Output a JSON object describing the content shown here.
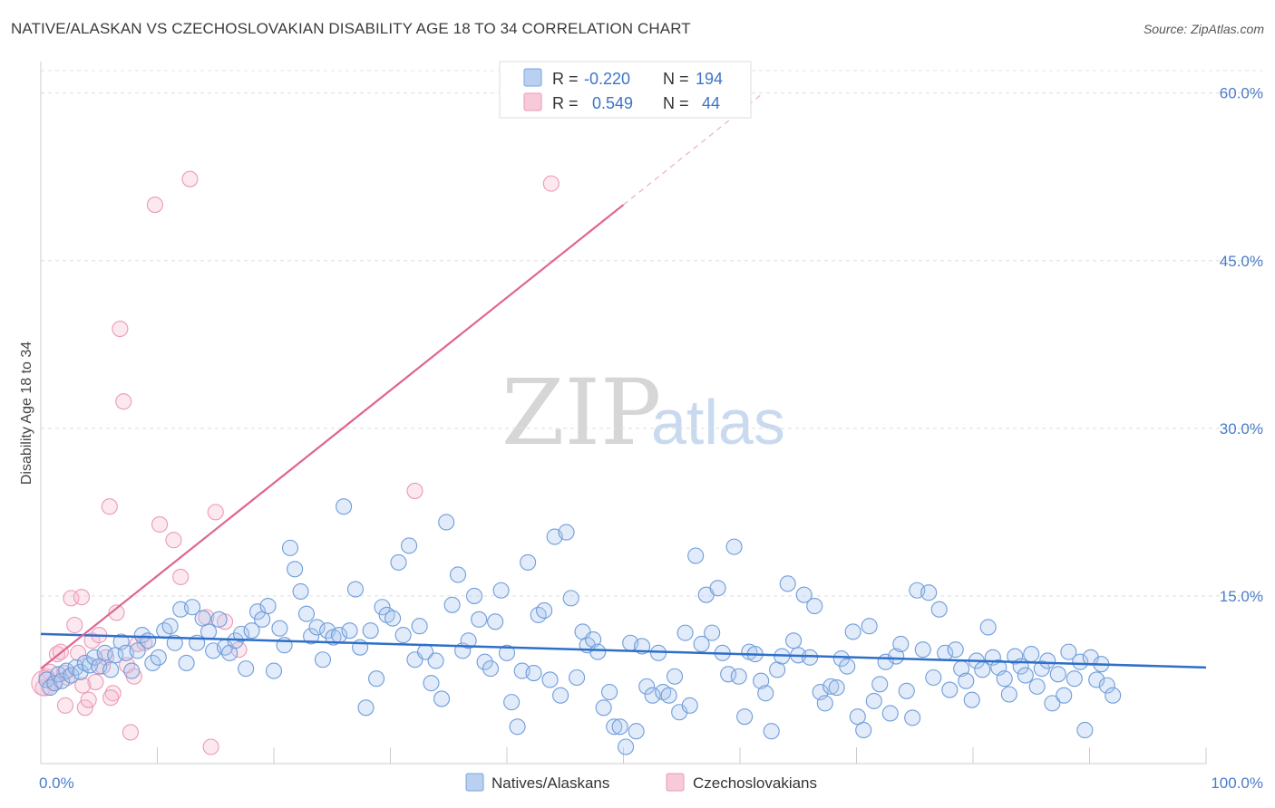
{
  "header": {
    "title": "NATIVE/ALASKAN VS CZECHOSLOVAKIAN DISABILITY AGE 18 TO 34 CORRELATION CHART",
    "source": "Source: ZipAtlas.com"
  },
  "watermark": {
    "zip": "ZIP",
    "atlas": "atlas"
  },
  "colors": {
    "blue": "#5b8fd6",
    "blue_fill": "#a9c6ee",
    "pink": "#e8709a",
    "pink_fill": "#f6bcd0",
    "axis_label": "#4a7cc9"
  },
  "legend": {
    "rows": [
      {
        "r_label": "R =",
        "r_value": "-0.220",
        "n_label": "N =",
        "n_value": "194"
      },
      {
        "r_label": "R =",
        "r_value": "0.549",
        "n_label": "N =",
        "n_value": "44"
      }
    ]
  },
  "chart_data": {
    "type": "scatter",
    "ylabel": "Disability Age 18 to 34",
    "x_tick_labels": [
      "0.0%",
      "100.0%"
    ],
    "y_tick_labels": [
      "15.0%",
      "30.0%",
      "45.0%",
      "60.0%"
    ],
    "y_ticks": [
      15,
      30,
      45,
      60
    ],
    "xlim": [
      0,
      100
    ],
    "ylim": [
      0,
      62
    ],
    "grid": "horizontal dashed",
    "legend_position": "top-center",
    "series": [
      {
        "name": "Natives/Alaskans",
        "color": "#5b8fd6",
        "trend": {
          "x0": 0,
          "y0": 11.6,
          "x1": 100,
          "y1": 8.6
        },
        "points": [
          [
            0.5,
            7.5
          ],
          [
            0.8,
            6.8
          ],
          [
            1.2,
            7.2
          ],
          [
            1.5,
            8.0
          ],
          [
            1.8,
            7.4
          ],
          [
            2.2,
            8.3
          ],
          [
            2.6,
            7.9
          ],
          [
            3.0,
            8.6
          ],
          [
            3.4,
            8.2
          ],
          [
            3.8,
            9.0
          ],
          [
            4.2,
            8.8
          ],
          [
            4.6,
            9.5
          ],
          [
            5.0,
            8.7
          ],
          [
            5.5,
            9.9
          ],
          [
            6.0,
            8.4
          ],
          [
            6.4,
            9.7
          ],
          [
            6.9,
            10.9
          ],
          [
            7.3,
            9.9
          ],
          [
            7.8,
            8.3
          ],
          [
            8.3,
            10.1
          ],
          [
            8.7,
            11.5
          ],
          [
            9.2,
            11.0
          ],
          [
            9.6,
            9.0
          ],
          [
            10.1,
            9.5
          ],
          [
            10.6,
            11.9
          ],
          [
            11.1,
            12.3
          ],
          [
            11.5,
            10.8
          ],
          [
            12.0,
            13.8
          ],
          [
            12.5,
            9.0
          ],
          [
            13.0,
            14.0
          ],
          [
            13.4,
            10.8
          ],
          [
            13.9,
            13.0
          ],
          [
            14.4,
            11.8
          ],
          [
            14.8,
            10.1
          ],
          [
            15.3,
            12.9
          ],
          [
            15.8,
            10.4
          ],
          [
            16.2,
            9.9
          ],
          [
            16.7,
            11.0
          ],
          [
            17.2,
            11.6
          ],
          [
            17.6,
            8.5
          ],
          [
            18.1,
            11.9
          ],
          [
            18.6,
            13.6
          ],
          [
            19.0,
            12.9
          ],
          [
            19.5,
            14.1
          ],
          [
            20.0,
            8.3
          ],
          [
            20.5,
            12.1
          ],
          [
            20.9,
            10.6
          ],
          [
            21.4,
            19.3
          ],
          [
            21.8,
            17.4
          ],
          [
            22.3,
            15.4
          ],
          [
            22.8,
            13.4
          ],
          [
            23.2,
            11.4
          ],
          [
            23.7,
            12.2
          ],
          [
            24.2,
            9.3
          ],
          [
            24.6,
            11.9
          ],
          [
            25.1,
            11.3
          ],
          [
            25.6,
            11.5
          ],
          [
            26.0,
            23.0
          ],
          [
            26.5,
            11.9
          ],
          [
            27.0,
            15.6
          ],
          [
            27.4,
            10.4
          ],
          [
            27.9,
            5.0
          ],
          [
            28.3,
            11.9
          ],
          [
            28.8,
            7.6
          ],
          [
            29.3,
            14.0
          ],
          [
            29.7,
            13.3
          ],
          [
            30.2,
            13.0
          ],
          [
            30.7,
            18.0
          ],
          [
            31.1,
            11.5
          ],
          [
            31.6,
            19.5
          ],
          [
            32.1,
            9.3
          ],
          [
            32.5,
            12.3
          ],
          [
            33.0,
            10.0
          ],
          [
            33.5,
            7.2
          ],
          [
            33.9,
            9.2
          ],
          [
            34.4,
            5.8
          ],
          [
            34.8,
            21.6
          ],
          [
            35.3,
            14.2
          ],
          [
            35.8,
            16.9
          ],
          [
            36.2,
            10.1
          ],
          [
            36.7,
            11.0
          ],
          [
            37.2,
            15.0
          ],
          [
            37.6,
            12.9
          ],
          [
            38.1,
            9.1
          ],
          [
            38.6,
            8.5
          ],
          [
            39.0,
            12.7
          ],
          [
            39.5,
            15.5
          ],
          [
            40.0,
            9.9
          ],
          [
            40.4,
            5.5
          ],
          [
            40.9,
            3.3
          ],
          [
            41.3,
            8.3
          ],
          [
            41.8,
            18.0
          ],
          [
            42.3,
            8.1
          ],
          [
            42.7,
            13.3
          ],
          [
            43.2,
            13.7
          ],
          [
            43.7,
            7.5
          ],
          [
            44.1,
            20.3
          ],
          [
            44.6,
            6.1
          ],
          [
            45.1,
            20.7
          ],
          [
            45.5,
            14.8
          ],
          [
            46.0,
            7.7
          ],
          [
            46.5,
            11.8
          ],
          [
            46.9,
            10.6
          ],
          [
            47.4,
            11.1
          ],
          [
            47.8,
            10.0
          ],
          [
            48.3,
            5.0
          ],
          [
            48.8,
            6.4
          ],
          [
            49.2,
            3.3
          ],
          [
            49.7,
            3.3
          ],
          [
            50.2,
            1.5
          ],
          [
            50.6,
            10.8
          ],
          [
            51.1,
            2.9
          ],
          [
            51.6,
            10.5
          ],
          [
            52.0,
            6.9
          ],
          [
            52.5,
            6.1
          ],
          [
            53.0,
            9.9
          ],
          [
            53.4,
            6.4
          ],
          [
            53.9,
            6.1
          ],
          [
            54.4,
            7.8
          ],
          [
            54.8,
            4.6
          ],
          [
            55.3,
            11.7
          ],
          [
            55.7,
            5.2
          ],
          [
            56.2,
            18.6
          ],
          [
            56.7,
            10.7
          ],
          [
            57.1,
            15.1
          ],
          [
            57.6,
            11.7
          ],
          [
            58.1,
            15.7
          ],
          [
            58.5,
            9.9
          ],
          [
            59.0,
            8.0
          ],
          [
            59.5,
            19.4
          ],
          [
            59.9,
            7.8
          ],
          [
            60.4,
            4.2
          ],
          [
            60.8,
            10.0
          ],
          [
            61.3,
            9.8
          ],
          [
            61.8,
            7.4
          ],
          [
            62.2,
            6.3
          ],
          [
            62.7,
            2.9
          ],
          [
            63.2,
            8.4
          ],
          [
            63.6,
            9.6
          ],
          [
            64.1,
            16.1
          ],
          [
            64.6,
            11.0
          ],
          [
            65.0,
            9.7
          ],
          [
            65.5,
            15.1
          ],
          [
            66.0,
            9.5
          ],
          [
            66.4,
            14.1
          ],
          [
            66.9,
            6.4
          ],
          [
            67.3,
            5.4
          ],
          [
            67.8,
            6.9
          ],
          [
            68.3,
            6.8
          ],
          [
            68.7,
            9.4
          ],
          [
            69.2,
            8.7
          ],
          [
            69.7,
            11.8
          ],
          [
            70.1,
            4.2
          ],
          [
            70.6,
            3.0
          ],
          [
            71.1,
            12.3
          ],
          [
            71.5,
            5.6
          ],
          [
            72.0,
            7.1
          ],
          [
            72.5,
            9.1
          ],
          [
            72.9,
            4.5
          ],
          [
            73.4,
            9.6
          ],
          [
            73.8,
            10.7
          ],
          [
            74.3,
            6.5
          ],
          [
            74.8,
            4.1
          ],
          [
            75.2,
            15.5
          ],
          [
            75.7,
            10.2
          ],
          [
            76.2,
            15.3
          ],
          [
            76.6,
            7.7
          ],
          [
            77.1,
            13.8
          ],
          [
            77.6,
            9.9
          ],
          [
            78.0,
            6.6
          ],
          [
            78.5,
            10.2
          ],
          [
            79.0,
            8.5
          ],
          [
            79.4,
            7.4
          ],
          [
            79.9,
            5.7
          ],
          [
            80.3,
            9.2
          ],
          [
            80.8,
            8.4
          ],
          [
            81.3,
            12.2
          ],
          [
            81.7,
            9.5
          ],
          [
            82.2,
            8.6
          ],
          [
            82.7,
            7.6
          ],
          [
            83.1,
            6.2
          ],
          [
            83.6,
            9.6
          ],
          [
            84.1,
            8.7
          ],
          [
            84.5,
            7.9
          ],
          [
            85.0,
            9.8
          ],
          [
            85.5,
            6.9
          ],
          [
            85.9,
            8.5
          ],
          [
            86.4,
            9.2
          ],
          [
            86.8,
            5.4
          ],
          [
            87.3,
            8.0
          ],
          [
            87.8,
            6.1
          ],
          [
            88.2,
            10.0
          ],
          [
            88.7,
            7.6
          ],
          [
            89.2,
            9.1
          ],
          [
            89.6,
            3.0
          ],
          [
            90.1,
            9.5
          ],
          [
            90.6,
            7.5
          ],
          [
            91.0,
            8.9
          ],
          [
            91.5,
            7.0
          ],
          [
            92.0,
            6.1
          ]
        ]
      },
      {
        "name": "Czechoslovakians",
        "color": "#e8709a",
        "trend": {
          "x0": 0,
          "y0": 8.5,
          "x1": 50,
          "y1": 50.0,
          "dash_to_x": 62,
          "dash_to_y": 60.0
        },
        "points": [
          [
            0.2,
            6.8
          ],
          [
            0.5,
            7.8
          ],
          [
            0.8,
            8.2
          ],
          [
            1.1,
            7.2
          ],
          [
            1.4,
            9.8
          ],
          [
            1.7,
            10.0
          ],
          [
            2.0,
            8.1
          ],
          [
            2.3,
            7.7
          ],
          [
            2.6,
            14.8
          ],
          [
            2.9,
            12.4
          ],
          [
            3.2,
            9.9
          ],
          [
            3.5,
            14.9
          ],
          [
            3.8,
            5.0
          ],
          [
            4.1,
            5.7
          ],
          [
            4.4,
            11.0
          ],
          [
            4.7,
            7.3
          ],
          [
            5.0,
            11.5
          ],
          [
            5.3,
            8.7
          ],
          [
            5.6,
            9.5
          ],
          [
            5.9,
            23.0
          ],
          [
            6.2,
            6.3
          ],
          [
            6.5,
            13.5
          ],
          [
            6.8,
            38.9
          ],
          [
            7.1,
            32.4
          ],
          [
            7.4,
            8.8
          ],
          [
            7.7,
            2.8
          ],
          [
            8.0,
            7.8
          ],
          [
            8.3,
            10.7
          ],
          [
            8.9,
            10.8
          ],
          [
            9.8,
            50.0
          ],
          [
            10.2,
            21.4
          ],
          [
            11.4,
            20.0
          ],
          [
            12.0,
            16.7
          ],
          [
            12.8,
            52.3
          ],
          [
            14.2,
            13.1
          ],
          [
            14.6,
            1.5
          ],
          [
            15.0,
            22.5
          ],
          [
            15.8,
            12.7
          ],
          [
            17.0,
            10.2
          ],
          [
            32.1,
            24.4
          ],
          [
            43.8,
            51.9
          ],
          [
            3.6,
            7.0
          ],
          [
            6.0,
            5.9
          ],
          [
            2.1,
            5.2
          ]
        ]
      }
    ]
  },
  "bottom_legend": {
    "items": [
      {
        "label": "Natives/Alaskans"
      },
      {
        "label": "Czechoslovakians"
      }
    ]
  }
}
